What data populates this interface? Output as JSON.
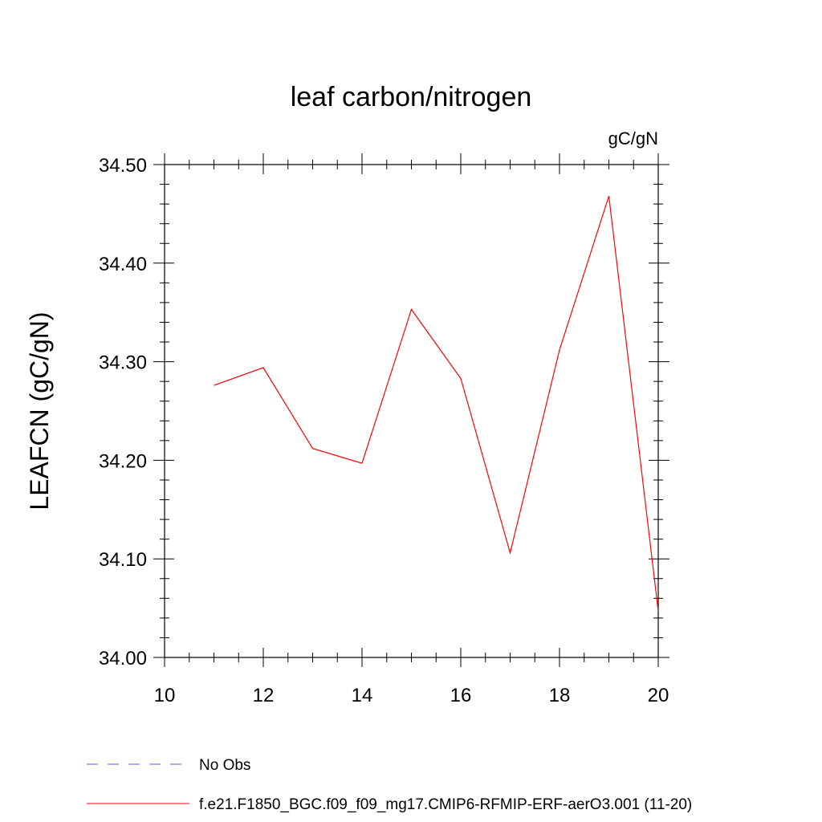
{
  "chart_data": {
    "type": "line",
    "title": "leaf carbon/nitrogen",
    "units_label": "gC/gN",
    "ylabel": "LEAFCN  (gC/gN)",
    "xlabel": "",
    "xlim": [
      10,
      20
    ],
    "ylim": [
      34.0,
      34.5
    ],
    "x_ticks": [
      "10",
      "12",
      "14",
      "16",
      "18",
      "20"
    ],
    "y_ticks": [
      "34.00",
      "34.10",
      "34.20",
      "34.30",
      "34.40",
      "34.50"
    ],
    "grid": false,
    "legend_position": "bottom",
    "series": [
      {
        "name": "f.e21.F1850_BGC.f09_f09_mg17.CMIP6-RFMIP-ERF-aerO3.001 (11-20)",
        "color": "#ff0000",
        "style": "solid",
        "x": [
          11,
          12,
          13,
          14,
          15,
          16,
          17,
          18,
          19,
          20
        ],
        "y": [
          34.276,
          34.294,
          34.212,
          34.197,
          34.353,
          34.283,
          34.106,
          34.312,
          34.468,
          34.047
        ]
      }
    ],
    "legend": [
      {
        "label": "No Obs",
        "color": "#6a5acd",
        "style": "dashed"
      },
      {
        "label": "f.e21.F1850_BGC.f09_f09_mg17.CMIP6-RFMIP-ERF-aerO3.001 (11-20)",
        "color": "#ff0000",
        "style": "solid"
      }
    ]
  }
}
